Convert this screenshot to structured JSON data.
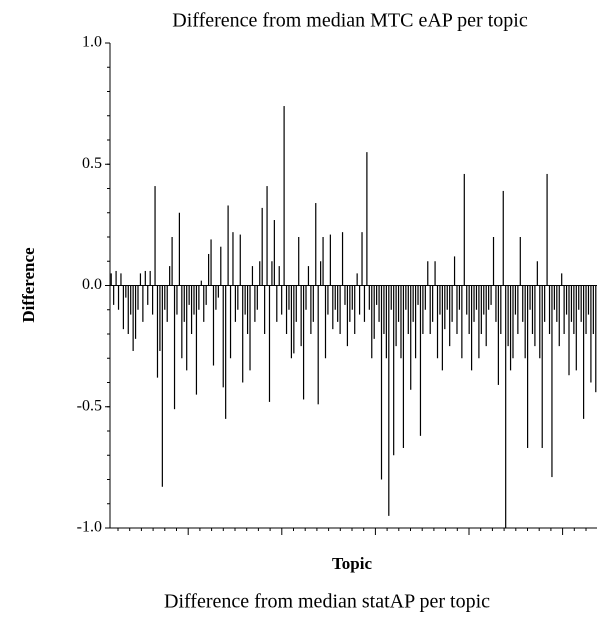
{
  "chart_data": {
    "type": "bar",
    "title": "Difference from median MTC eAP per topic",
    "x_label": "Topic",
    "y_label": "Difference",
    "caption": "Difference from median statAP per topic",
    "color": "#000000",
    "ylim": [
      -1.0,
      1.0
    ],
    "yticks": [
      {
        "value": 1.0,
        "label": "1.0"
      },
      0.5,
      {
        "value": 0.0,
        "label": "0.0"
      },
      -0.5,
      {
        "value": -1.0,
        "label": "-1.0"
      }
    ],
    "values": [
      0.05,
      -0.08,
      0.06,
      -0.1,
      0.05,
      -0.18,
      -0.05,
      -0.2,
      -0.12,
      -0.27,
      -0.22,
      -0.1,
      0.05,
      -0.15,
      0.06,
      -0.08,
      0.06,
      -0.12,
      0.41,
      -0.38,
      -0.27,
      -0.83,
      -0.1,
      -0.15,
      0.08,
      0.2,
      -0.51,
      -0.12,
      0.3,
      -0.3,
      -0.15,
      -0.35,
      -0.08,
      -0.2,
      -0.12,
      -0.45,
      -0.1,
      0.02,
      -0.15,
      -0.08,
      0.13,
      0.19,
      -0.33,
      -0.1,
      -0.05,
      0.16,
      -0.42,
      -0.55,
      0.33,
      -0.3,
      0.22,
      -0.15,
      -0.1,
      0.21,
      -0.4,
      -0.12,
      -0.2,
      -0.35,
      0.08,
      -0.15,
      -0.1,
      0.1,
      0.32,
      -0.2,
      0.41,
      -0.48,
      0.1,
      0.27,
      -0.15,
      0.08,
      -0.12,
      0.74,
      -0.2,
      -0.1,
      -0.3,
      -0.28,
      -0.15,
      0.2,
      -0.25,
      -0.47,
      -0.1,
      0.08,
      -0.2,
      -0.15,
      0.34,
      -0.49,
      0.1,
      0.2,
      -0.3,
      -0.12,
      0.21,
      -0.18,
      -0.1,
      -0.15,
      -0.2,
      0.22,
      -0.08,
      -0.25,
      -0.15,
      -0.1,
      -0.2,
      0.05,
      -0.12,
      0.22,
      -0.15,
      0.55,
      -0.1,
      -0.3,
      -0.22,
      -0.08,
      -0.15,
      -0.8,
      -0.2,
      -0.3,
      -0.95,
      -0.1,
      -0.7,
      -0.25,
      -0.15,
      -0.3,
      -0.67,
      -0.1,
      -0.2,
      -0.43,
      -0.15,
      -0.3,
      -0.08,
      -0.62,
      -0.2,
      -0.1,
      0.1,
      -0.2,
      -0.15,
      0.1,
      -0.3,
      -0.12,
      -0.35,
      -0.18,
      -0.1,
      -0.25,
      -0.15,
      0.12,
      -0.2,
      -0.1,
      -0.3,
      0.46,
      -0.12,
      -0.2,
      -0.35,
      -0.15,
      -0.1,
      -0.3,
      -0.2,
      -0.12,
      -0.25,
      -0.1,
      -0.08,
      0.2,
      -0.15,
      -0.41,
      -0.2,
      0.39,
      -1.0,
      -0.25,
      -0.35,
      -0.3,
      -0.12,
      -0.2,
      0.2,
      -0.15,
      -0.3,
      -0.67,
      -0.1,
      -0.2,
      -0.25,
      0.1,
      -0.3,
      -0.67,
      -0.15,
      0.46,
      -0.2,
      -0.79,
      -0.1,
      -0.15,
      -0.25,
      0.05,
      -0.2,
      -0.12,
      -0.37,
      -0.15,
      -0.2,
      -0.35,
      -0.1,
      -0.15,
      -0.55,
      -0.2,
      -0.12,
      -0.4,
      -0.2,
      -0.44
    ]
  }
}
